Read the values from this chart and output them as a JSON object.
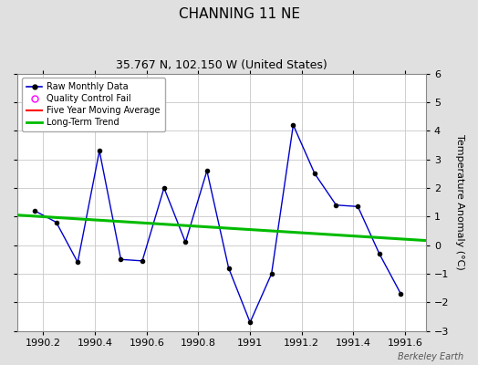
{
  "title": "CHANNING 11 NE",
  "subtitle": "35.767 N, 102.150 W (United States)",
  "ylabel": "Temperature Anomaly (°C)",
  "watermark": "Berkeley Earth",
  "raw_x": [
    1990.167,
    1990.25,
    1990.333,
    1990.417,
    1990.5,
    1990.583,
    1990.667,
    1990.75,
    1990.833,
    1990.917,
    1991.0,
    1991.083,
    1991.167,
    1991.25,
    1991.333,
    1991.417,
    1991.5,
    1991.583
  ],
  "raw_y": [
    1.2,
    0.8,
    -0.6,
    3.3,
    -0.5,
    -0.55,
    2.0,
    0.1,
    2.6,
    -0.8,
    -2.7,
    -1.0,
    4.2,
    2.5,
    1.4,
    1.35,
    -0.3,
    -1.7
  ],
  "trend_x": [
    1990.1,
    1991.7
  ],
  "trend_y": [
    1.05,
    0.15
  ],
  "xlim": [
    1990.1,
    1991.68
  ],
  "ylim": [
    -3,
    6
  ],
  "yticks": [
    -3,
    -2,
    -1,
    0,
    1,
    2,
    3,
    4,
    5,
    6
  ],
  "xticks": [
    1990.2,
    1990.4,
    1990.6,
    1990.8,
    1991.0,
    1991.2,
    1991.4,
    1991.6
  ],
  "xtick_labels": [
    "1990.2",
    "1990.4",
    "1990.6",
    "1990.8",
    "1991",
    "1991.2",
    "1991.4",
    "1991.6"
  ],
  "raw_color": "#0000cc",
  "raw_marker_color": "#000000",
  "trend_color": "#00bb00",
  "moving_avg_color": "#ff0000",
  "bg_color": "#e0e0e0",
  "plot_bg_color": "#ffffff",
  "grid_color": "#c8c8c8",
  "legend_bg": "#ffffff",
  "title_fontsize": 11,
  "subtitle_fontsize": 9,
  "label_fontsize": 8,
  "tick_fontsize": 8,
  "legend_fontsize": 7
}
